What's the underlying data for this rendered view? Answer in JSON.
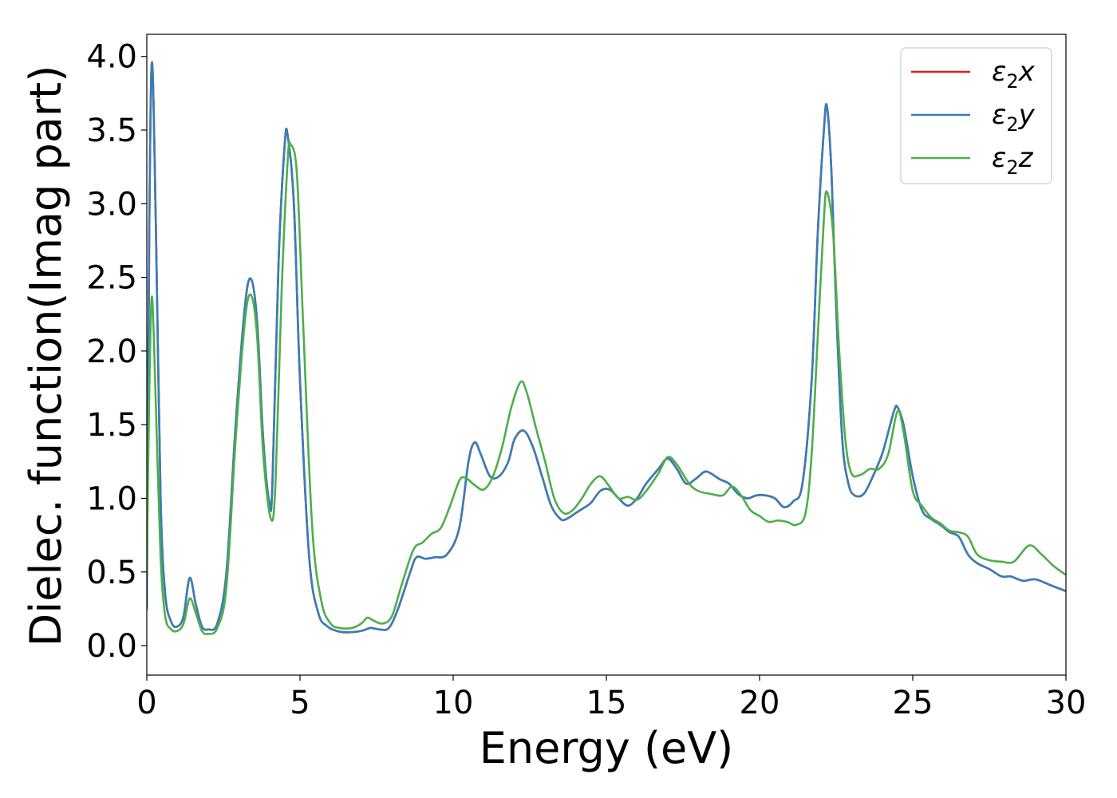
{
  "chart_data": {
    "type": "line",
    "title": "",
    "xlabel": "Energy (eV)",
    "ylabel": "Dielec. function(Imag part)",
    "xlim": [
      0,
      30
    ],
    "ylim": [
      -0.2,
      4.15
    ],
    "xticks": [
      0,
      5,
      10,
      15,
      20,
      25,
      30
    ],
    "xtick_labels": [
      "0",
      "5",
      "10",
      "15",
      "20",
      "25",
      "30"
    ],
    "yticks": [
      0.0,
      0.5,
      1.0,
      1.5,
      2.0,
      2.5,
      3.0,
      3.5,
      4.0
    ],
    "ytick_labels": [
      "0.0",
      "0.5",
      "1.0",
      "1.5",
      "2.0",
      "2.5",
      "3.0",
      "3.5",
      "4.0"
    ],
    "grid": false,
    "legend_position": "top-right",
    "series": [
      {
        "name": "ε2x",
        "legend_base": "ε",
        "legend_sub": "2",
        "legend_var": "x",
        "color": "#e41a1c",
        "x": [
          0,
          0.08,
          0.17,
          0.3,
          0.45,
          0.6,
          0.8,
          1.0,
          1.2,
          1.4,
          1.6,
          1.8,
          2.0,
          2.3,
          2.6,
          2.9,
          3.2,
          3.4,
          3.6,
          3.8,
          4.0,
          4.1,
          4.3,
          4.5,
          4.6,
          4.8,
          5.0,
          5.3,
          5.6,
          5.9,
          6.2,
          6.5,
          7.0,
          7.3,
          7.6,
          7.9,
          8.2,
          8.6,
          8.8,
          9.1,
          9.4,
          9.8,
          10.2,
          10.5,
          10.7,
          10.9,
          11.2,
          11.5,
          11.8,
          12.0,
          12.3,
          12.6,
          12.9,
          13.2,
          13.5,
          13.7,
          14.0,
          14.3,
          14.5,
          14.8,
          15.1,
          15.4,
          15.7,
          16.0,
          16.3,
          16.7,
          17.0,
          17.3,
          17.6,
          17.9,
          18.2,
          18.4,
          18.7,
          19.0,
          19.3,
          19.6,
          19.9,
          20.2,
          20.5,
          20.8,
          21.1,
          21.4,
          21.7,
          21.9,
          22.1,
          22.2,
          22.35,
          22.5,
          22.7,
          22.9,
          23.1,
          23.4,
          23.7,
          24.0,
          24.2,
          24.4,
          24.5,
          24.7,
          25.0,
          25.3,
          25.6,
          25.9,
          26.2,
          26.5,
          26.8,
          27.1,
          27.5,
          27.9,
          28.2,
          28.6,
          29.0,
          29.5,
          30.0
        ],
        "y": [
          0.25,
          2.8,
          3.96,
          2.8,
          1.0,
          0.35,
          0.16,
          0.13,
          0.2,
          0.46,
          0.28,
          0.13,
          0.11,
          0.15,
          0.5,
          1.5,
          2.3,
          2.49,
          2.2,
          1.4,
          0.97,
          1.1,
          2.6,
          3.4,
          3.46,
          3.0,
          1.8,
          0.6,
          0.22,
          0.13,
          0.1,
          0.09,
          0.1,
          0.12,
          0.11,
          0.12,
          0.25,
          0.5,
          0.6,
          0.59,
          0.6,
          0.62,
          0.8,
          1.25,
          1.38,
          1.3,
          1.15,
          1.15,
          1.25,
          1.4,
          1.46,
          1.35,
          1.15,
          0.95,
          0.86,
          0.86,
          0.9,
          0.94,
          0.97,
          1.05,
          1.06,
          1.0,
          0.95,
          1.0,
          1.1,
          1.2,
          1.27,
          1.2,
          1.1,
          1.13,
          1.18,
          1.17,
          1.13,
          1.1,
          1.03,
          1.0,
          1.02,
          1.02,
          1.0,
          0.94,
          0.98,
          1.1,
          1.8,
          2.8,
          3.5,
          3.66,
          3.2,
          2.3,
          1.4,
          1.1,
          1.02,
          1.03,
          1.15,
          1.3,
          1.45,
          1.6,
          1.62,
          1.5,
          1.15,
          0.92,
          0.86,
          0.82,
          0.77,
          0.74,
          0.62,
          0.56,
          0.52,
          0.47,
          0.47,
          0.44,
          0.45,
          0.41,
          0.37
        ]
      },
      {
        "name": "ε2y",
        "legend_base": "ε",
        "legend_sub": "2",
        "legend_var": "y",
        "color": "#377eb8",
        "x": [
          0,
          0.08,
          0.17,
          0.3,
          0.45,
          0.6,
          0.8,
          1.0,
          1.2,
          1.4,
          1.6,
          1.8,
          2.0,
          2.3,
          2.6,
          2.9,
          3.2,
          3.4,
          3.6,
          3.8,
          4.0,
          4.1,
          4.3,
          4.5,
          4.6,
          4.8,
          5.0,
          5.3,
          5.6,
          5.9,
          6.2,
          6.5,
          7.0,
          7.3,
          7.6,
          7.9,
          8.2,
          8.6,
          8.8,
          9.1,
          9.4,
          9.8,
          10.2,
          10.5,
          10.7,
          10.9,
          11.2,
          11.5,
          11.8,
          12.0,
          12.3,
          12.6,
          12.9,
          13.2,
          13.5,
          13.7,
          14.0,
          14.3,
          14.5,
          14.8,
          15.1,
          15.4,
          15.7,
          16.0,
          16.3,
          16.7,
          17.0,
          17.3,
          17.6,
          17.9,
          18.2,
          18.4,
          18.7,
          19.0,
          19.3,
          19.6,
          19.9,
          20.2,
          20.5,
          20.8,
          21.1,
          21.4,
          21.7,
          21.9,
          22.1,
          22.2,
          22.35,
          22.5,
          22.7,
          22.9,
          23.1,
          23.4,
          23.7,
          24.0,
          24.2,
          24.4,
          24.5,
          24.7,
          25.0,
          25.3,
          25.6,
          25.9,
          26.2,
          26.5,
          26.8,
          27.1,
          27.5,
          27.9,
          28.2,
          28.6,
          29.0,
          29.5,
          30.0
        ],
        "y": [
          0.25,
          2.8,
          3.96,
          2.8,
          1.0,
          0.35,
          0.16,
          0.13,
          0.2,
          0.46,
          0.28,
          0.13,
          0.11,
          0.15,
          0.5,
          1.5,
          2.3,
          2.49,
          2.2,
          1.4,
          0.97,
          1.1,
          2.6,
          3.4,
          3.46,
          3.0,
          1.8,
          0.6,
          0.22,
          0.13,
          0.1,
          0.09,
          0.1,
          0.12,
          0.11,
          0.12,
          0.25,
          0.5,
          0.6,
          0.59,
          0.6,
          0.62,
          0.8,
          1.25,
          1.38,
          1.3,
          1.15,
          1.15,
          1.25,
          1.4,
          1.46,
          1.35,
          1.15,
          0.95,
          0.86,
          0.86,
          0.9,
          0.94,
          0.97,
          1.05,
          1.06,
          1.0,
          0.95,
          1.0,
          1.1,
          1.2,
          1.27,
          1.2,
          1.1,
          1.13,
          1.18,
          1.17,
          1.13,
          1.1,
          1.03,
          1.0,
          1.02,
          1.02,
          1.0,
          0.94,
          0.98,
          1.1,
          1.8,
          2.8,
          3.5,
          3.66,
          3.2,
          2.3,
          1.4,
          1.1,
          1.02,
          1.03,
          1.15,
          1.3,
          1.45,
          1.6,
          1.62,
          1.5,
          1.15,
          0.92,
          0.86,
          0.82,
          0.77,
          0.74,
          0.62,
          0.56,
          0.52,
          0.47,
          0.47,
          0.44,
          0.45,
          0.41,
          0.37
        ]
      },
      {
        "name": "ε2z",
        "legend_base": "ε",
        "legend_sub": "2",
        "legend_var": "z",
        "color": "#4daf4a",
        "x": [
          0,
          0.08,
          0.17,
          0.3,
          0.45,
          0.6,
          0.8,
          1.0,
          1.2,
          1.4,
          1.6,
          1.8,
          2.0,
          2.3,
          2.6,
          2.9,
          3.2,
          3.4,
          3.6,
          3.8,
          4.05,
          4.2,
          4.4,
          4.6,
          4.7,
          4.9,
          5.1,
          5.4,
          5.7,
          6.0,
          6.3,
          6.7,
          7.0,
          7.2,
          7.4,
          7.7,
          8.0,
          8.3,
          8.7,
          9.0,
          9.3,
          9.6,
          9.9,
          10.2,
          10.4,
          10.7,
          11.0,
          11.3,
          11.6,
          11.9,
          12.2,
          12.4,
          12.7,
          13.0,
          13.3,
          13.6,
          13.9,
          14.2,
          14.5,
          14.8,
          15.1,
          15.4,
          15.7,
          16.0,
          16.3,
          16.7,
          17.0,
          17.3,
          17.7,
          18.0,
          18.4,
          18.8,
          19.1,
          19.4,
          19.7,
          20.0,
          20.3,
          20.6,
          20.9,
          21.2,
          21.5,
          21.7,
          21.9,
          22.1,
          22.2,
          22.4,
          22.6,
          22.8,
          23.0,
          23.3,
          23.6,
          23.9,
          24.2,
          24.5,
          24.7,
          25.0,
          25.3,
          25.6,
          25.9,
          26.2,
          26.5,
          26.8,
          27.1,
          27.5,
          27.9,
          28.3,
          28.8,
          29.2,
          29.6,
          30.0
        ],
        "y": [
          0.5,
          1.7,
          2.37,
          1.6,
          0.6,
          0.2,
          0.11,
          0.1,
          0.15,
          0.32,
          0.22,
          0.1,
          0.08,
          0.12,
          0.4,
          1.4,
          2.2,
          2.38,
          2.1,
          1.3,
          0.86,
          1.1,
          2.4,
          3.3,
          3.4,
          3.2,
          2.2,
          0.8,
          0.3,
          0.15,
          0.12,
          0.12,
          0.15,
          0.19,
          0.17,
          0.15,
          0.2,
          0.4,
          0.65,
          0.7,
          0.76,
          0.8,
          0.95,
          1.12,
          1.14,
          1.09,
          1.06,
          1.15,
          1.35,
          1.62,
          1.79,
          1.72,
          1.48,
          1.25,
          1.0,
          0.9,
          0.92,
          1.0,
          1.1,
          1.15,
          1.08,
          1.0,
          1.01,
          0.99,
          1.05,
          1.17,
          1.28,
          1.23,
          1.1,
          1.05,
          1.03,
          1.02,
          1.08,
          1.02,
          0.92,
          0.88,
          0.84,
          0.85,
          0.84,
          0.82,
          0.9,
          1.3,
          2.1,
          2.9,
          3.08,
          2.8,
          2.0,
          1.4,
          1.17,
          1.16,
          1.2,
          1.2,
          1.3,
          1.59,
          1.45,
          1.05,
          0.95,
          0.87,
          0.83,
          0.78,
          0.77,
          0.74,
          0.62,
          0.58,
          0.57,
          0.57,
          0.68,
          0.62,
          0.54,
          0.48
        ]
      }
    ]
  }
}
